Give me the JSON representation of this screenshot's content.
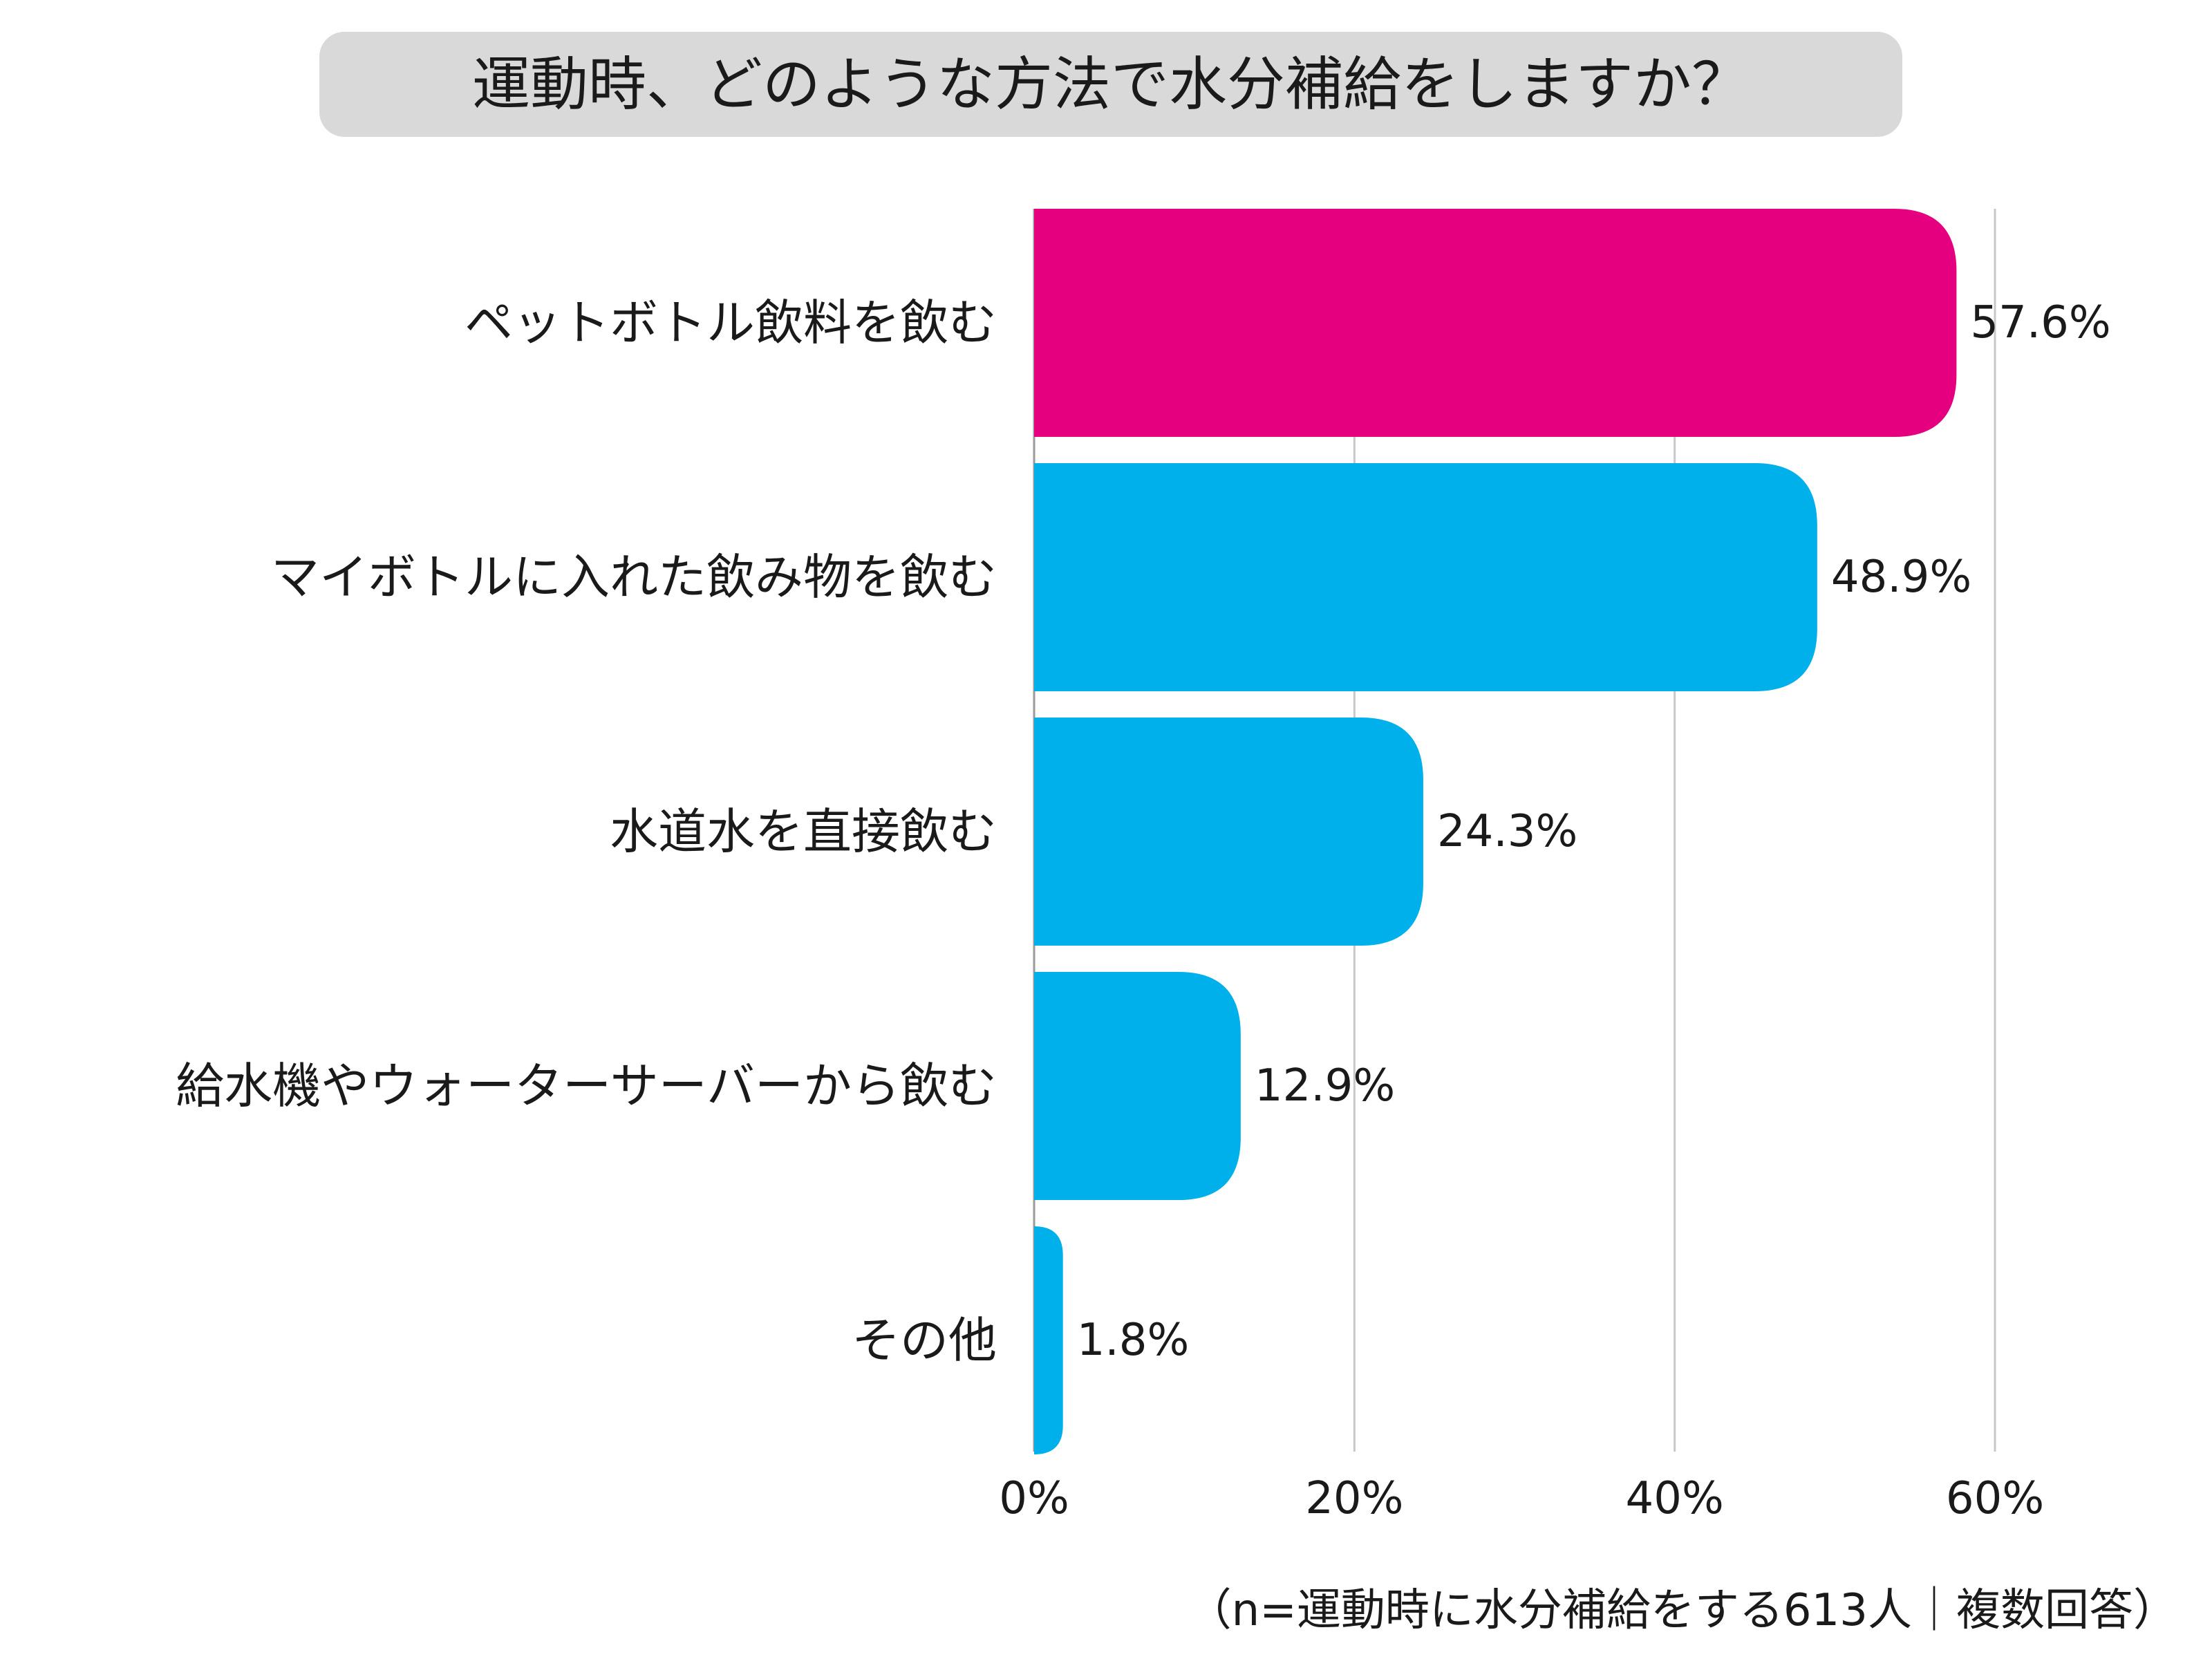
{
  "chart_data": {
    "type": "bar",
    "orientation": "horizontal",
    "title": "運動時、どのような方法で水分補給をしますか？",
    "categories": [
      "ペットボトル飲料を飲む",
      "マイボトルに入れた飲み物を飲む",
      "水道水を直接飲む",
      "給水機やウォーターサーバーから飲む",
      "その他"
    ],
    "values": [
      57.6,
      48.9,
      24.3,
      12.9,
      1.8
    ],
    "value_labels": [
      "57.6%",
      "48.9%",
      "24.3%",
      "12.9%",
      "1.8%"
    ],
    "xlim": [
      0,
      60
    ],
    "xticks": [
      0,
      20,
      40,
      60
    ],
    "xtick_labels": [
      "0%",
      "20%",
      "40%",
      "60%"
    ],
    "xlabel": "",
    "ylabel": "",
    "grid": true,
    "highlight_index": 0,
    "colors": {
      "highlight": "#E4007F",
      "default": "#00B0EB",
      "grid": "#C8C8C8",
      "title_bg": "#D9D9D9",
      "text": "#1a1a1a"
    },
    "note": "（n=運動時に水分補給をする613人｜複数回答）"
  }
}
